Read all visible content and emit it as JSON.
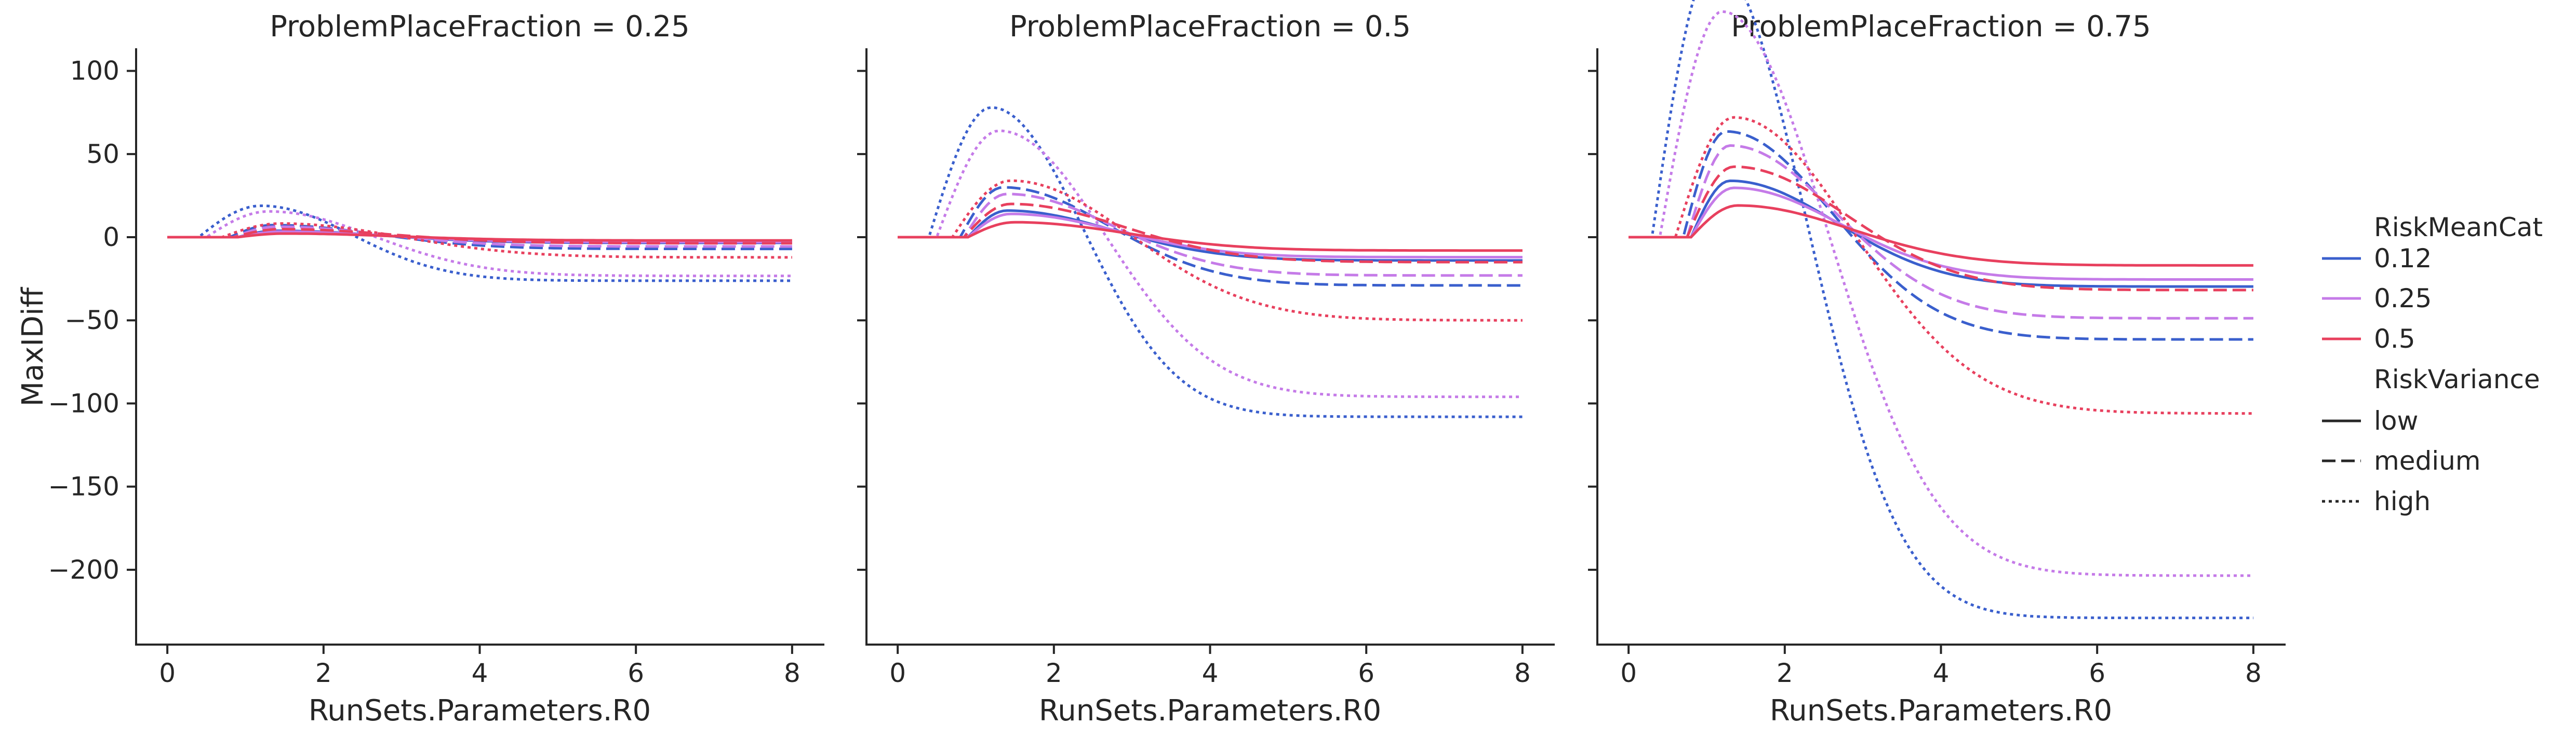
{
  "chart_data": {
    "type": "line",
    "panels": [
      {
        "title": "ProblemPlaceFraction = 0.25",
        "scale": 0.2424,
        "peak_shift": 0.0
      },
      {
        "title": "ProblemPlaceFraction = 0.5",
        "scale": 1.0,
        "peak_shift": 0.0
      },
      {
        "title": "ProblemPlaceFraction = 0.75",
        "scale": 2.12,
        "peak_shift": -0.1
      }
    ],
    "xlabel": "RunSets.Parameters.R0",
    "ylabel": "MaxIDiff",
    "xlim": [
      -0.4,
      8.4
    ],
    "ylim": [
      -245,
      113
    ],
    "xticks": [
      0,
      2,
      4,
      6,
      8
    ],
    "yticks": [
      100,
      50,
      0,
      -50,
      -100,
      -150,
      -200
    ],
    "x_values": [
      0,
      0.25,
      0.5,
      0.75,
      1.0,
      1.25,
      1.5,
      1.75,
      2.0,
      2.5,
      3.0,
      3.5,
      4.0,
      4.5,
      5.0,
      5.5,
      6.0,
      6.5,
      7.0,
      7.5,
      8.0
    ],
    "legend": {
      "placement": "right",
      "hue_title": "RiskMeanCat",
      "style_title": "RiskVariance",
      "hue_entries": [
        {
          "label": "0.12",
          "color": "#3a5fcd"
        },
        {
          "label": "0.25",
          "color": "#c57be8"
        },
        {
          "label": "0.5",
          "color": "#e8405e"
        }
      ],
      "style_entries": [
        {
          "label": "low",
          "dash": "solid"
        },
        {
          "label": "medium",
          "dash": "dashed"
        },
        {
          "label": "high",
          "dash": "dotted"
        }
      ]
    },
    "series_templates": [
      {
        "risk_mean": "0.12",
        "variance": "low",
        "onset": 0.9,
        "peak": 16,
        "peak_x": 1.4,
        "asymptote": -14,
        "k": 0.45
      },
      {
        "risk_mean": "0.12",
        "variance": "medium",
        "onset": 0.8,
        "peak": 30,
        "peak_x": 1.35,
        "asymptote": -29,
        "k": 0.45
      },
      {
        "risk_mean": "0.12",
        "variance": "high",
        "onset": 0.4,
        "peak": 78,
        "peak_x": 1.2,
        "asymptote": -108,
        "k": 0.6
      },
      {
        "risk_mean": "0.25",
        "variance": "low",
        "onset": 0.9,
        "peak": 14,
        "peak_x": 1.45,
        "asymptote": -12,
        "k": 0.45
      },
      {
        "risk_mean": "0.25",
        "variance": "medium",
        "onset": 0.85,
        "peak": 26,
        "peak_x": 1.4,
        "asymptote": -23,
        "k": 0.45
      },
      {
        "risk_mean": "0.25",
        "variance": "high",
        "onset": 0.5,
        "peak": 64,
        "peak_x": 1.3,
        "asymptote": -96,
        "k": 0.45
      },
      {
        "risk_mean": "0.5",
        "variance": "low",
        "onset": 0.9,
        "peak": 9,
        "peak_x": 1.5,
        "asymptote": -8,
        "k": 0.4
      },
      {
        "risk_mean": "0.5",
        "variance": "medium",
        "onset": 0.85,
        "peak": 20,
        "peak_x": 1.45,
        "asymptote": -15,
        "k": 0.4
      },
      {
        "risk_mean": "0.5",
        "variance": "high",
        "onset": 0.7,
        "peak": 34,
        "peak_x": 1.45,
        "asymptote": -50,
        "k": 0.35
      }
    ]
  }
}
